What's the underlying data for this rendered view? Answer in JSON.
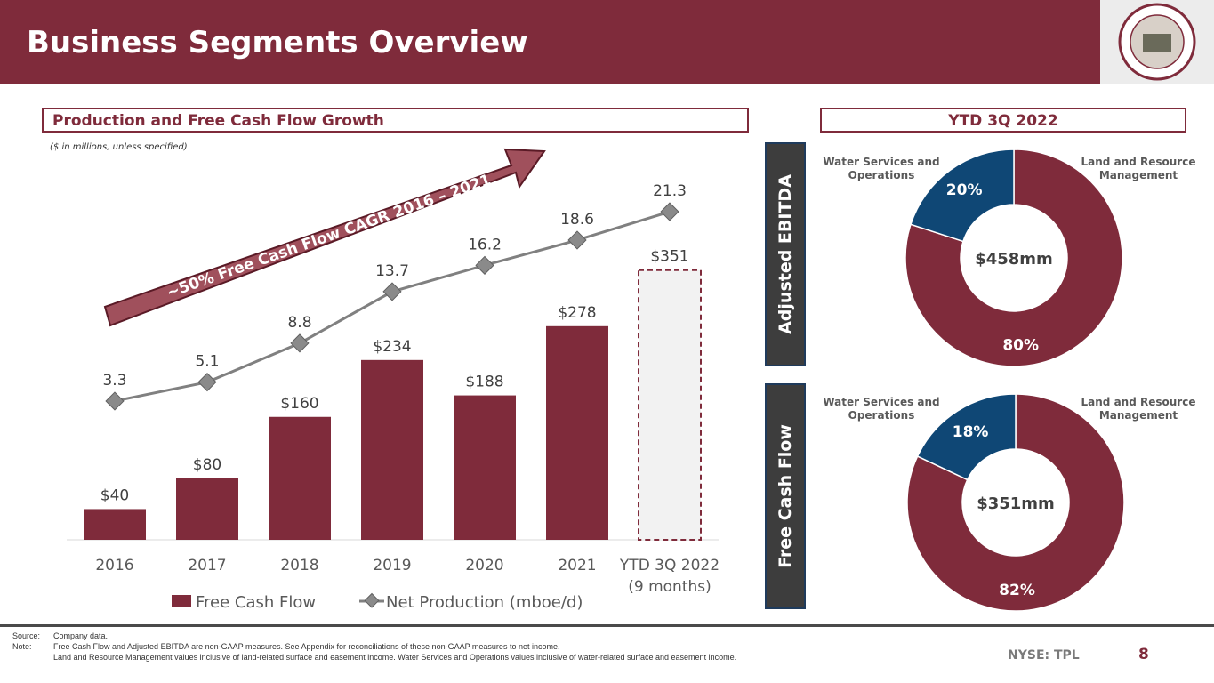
{
  "header": {
    "title": "Business Segments Overview",
    "logo_text": "TEXAS PACIFIC LAND CORP"
  },
  "left_panel": {
    "heading": "Production and Free Cash Flow Growth",
    "note": "($ in millions, unless specified)",
    "arrow_text": "~50% Free Cash Flow CAGR 2016 – 2021"
  },
  "right_panel": {
    "heading": "YTD 3Q 2022",
    "side_labels": [
      "Adjusted EBITDA",
      "Free Cash Flow"
    ]
  },
  "colors": {
    "maroon": "#7f2b3b",
    "navy": "#0f4775",
    "line": "#808080",
    "marker": "#8a8a8a",
    "ytd_fill": "#f2f2f2"
  },
  "chart_data": [
    {
      "type": "bar",
      "categories": [
        "2016",
        "2017",
        "2018",
        "2019",
        "2020",
        "2021",
        "YTD 3Q 2022 (9 months)"
      ],
      "category_labels": [
        [
          "2016"
        ],
        [
          "2017"
        ],
        [
          "2018"
        ],
        [
          "2019"
        ],
        [
          "2020"
        ],
        [
          "2021"
        ],
        [
          "YTD 3Q 2022",
          "(9 months)"
        ]
      ],
      "series": [
        {
          "name": "Free Cash Flow",
          "type": "bar",
          "values": [
            40,
            80,
            160,
            234,
            188,
            278,
            351
          ],
          "labels": [
            "$40",
            "$80",
            "$160",
            "$234",
            "$188",
            "$278",
            "$351"
          ]
        },
        {
          "name": "Net Production (mboe/d)",
          "type": "line",
          "values": [
            3.3,
            5.1,
            8.8,
            13.7,
            16.2,
            18.6,
            21.3
          ],
          "labels": [
            "3.3",
            "5.1",
            "8.8",
            "13.7",
            "16.2",
            "18.6",
            "21.3"
          ]
        }
      ],
      "legend": "bottom"
    },
    {
      "type": "pie",
      "title": "Adjusted EBITDA",
      "center_label": "$458mm",
      "slices": [
        {
          "name": "Land and Resource Management",
          "value": 80,
          "label": "80%"
        },
        {
          "name": "Water Services and Operations",
          "value": 20,
          "label": "20%"
        }
      ]
    },
    {
      "type": "pie",
      "title": "Free Cash Flow",
      "center_label": "$351mm",
      "slices": [
        {
          "name": "Land and Resource Management",
          "value": 82,
          "label": "82%"
        },
        {
          "name": "Water Services and Operations",
          "value": 18,
          "label": "18%"
        }
      ]
    }
  ],
  "footer": {
    "source_label": "Source:",
    "source": "Company data.",
    "note_label": "Note:",
    "note1": "Free Cash Flow and Adjusted EBITDA are non-GAAP measures.  See Appendix for reconciliations of these non-GAAP measures to net income.",
    "note2": "Land and Resource Management values inclusive of land-related surface and easement income. Water Services and Operations values inclusive of water-related surface and easement income.",
    "ticker": "NYSE: TPL",
    "page": "8"
  }
}
